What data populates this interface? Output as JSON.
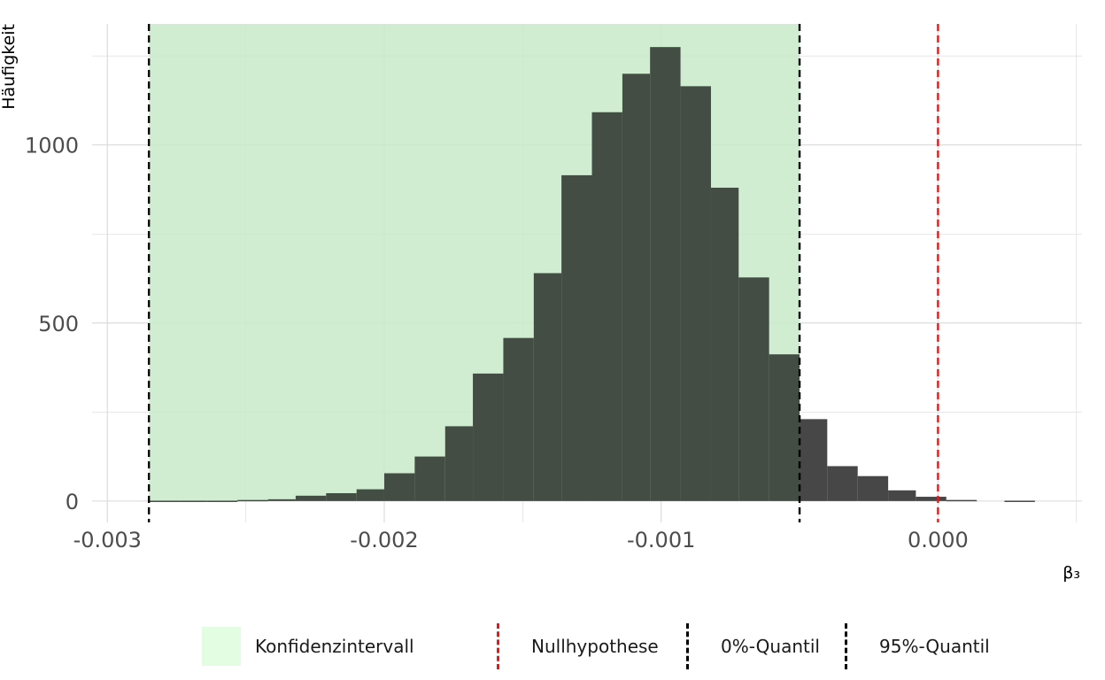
{
  "chart_data": {
    "type": "bar",
    "title": "",
    "xlabel": "β₃",
    "ylabel": "Häufigkeit",
    "xlim": [
      -0.0031,
      0.00052
    ],
    "ylim": [
      -60,
      1340
    ],
    "x_ticks": [
      -0.003,
      -0.002,
      -0.001,
      0.0
    ],
    "x_tick_labels": [
      "-0.003",
      "-0.002",
      "-0.001",
      "0.000"
    ],
    "y_ticks": [
      0,
      500,
      1000
    ],
    "y_tick_labels": [
      "0",
      "500",
      "1000"
    ],
    "grid": true,
    "bin_width": 0.000107,
    "bins": [
      {
        "x0": -0.00285,
        "x1": -0.00274,
        "count": 1
      },
      {
        "x0": -0.00274,
        "x1": -0.00264,
        "count": 1
      },
      {
        "x0": -0.00264,
        "x1": -0.00253,
        "count": 1
      },
      {
        "x0": -0.00253,
        "x1": -0.00242,
        "count": 3
      },
      {
        "x0": -0.00242,
        "x1": -0.00232,
        "count": 5
      },
      {
        "x0": -0.00232,
        "x1": -0.00221,
        "count": 15
      },
      {
        "x0": -0.00221,
        "x1": -0.0021,
        "count": 22
      },
      {
        "x0": -0.0021,
        "x1": -0.002,
        "count": 33
      },
      {
        "x0": -0.002,
        "x1": -0.00189,
        "count": 78
      },
      {
        "x0": -0.00189,
        "x1": -0.00178,
        "count": 125
      },
      {
        "x0": -0.00178,
        "x1": -0.00168,
        "count": 210
      },
      {
        "x0": -0.00168,
        "x1": -0.00157,
        "count": 358
      },
      {
        "x0": -0.00157,
        "x1": -0.00146,
        "count": 458
      },
      {
        "x0": -0.00146,
        "x1": -0.00136,
        "count": 640
      },
      {
        "x0": -0.00136,
        "x1": -0.00125,
        "count": 915
      },
      {
        "x0": -0.00125,
        "x1": -0.00114,
        "count": 1092
      },
      {
        "x0": -0.00114,
        "x1": -0.00104,
        "count": 1200
      },
      {
        "x0": -0.00104,
        "x1": -0.00093,
        "count": 1275
      },
      {
        "x0": -0.00093,
        "x1": -0.00082,
        "count": 1165
      },
      {
        "x0": -0.00082,
        "x1": -0.00072,
        "count": 880
      },
      {
        "x0": -0.00072,
        "x1": -0.00061,
        "count": 628
      },
      {
        "x0": -0.00061,
        "x1": -0.0005,
        "count": 412
      },
      {
        "x0": -0.0005,
        "x1": -0.0004,
        "count": 230
      },
      {
        "x0": -0.0004,
        "x1": -0.00029,
        "count": 98
      },
      {
        "x0": -0.00029,
        "x1": -0.00018,
        "count": 70
      },
      {
        "x0": -0.00018,
        "x1": -8e-05,
        "count": 30
      },
      {
        "x0": -8e-05,
        "x1": 3e-05,
        "count": 12
      },
      {
        "x0": 3e-05,
        "x1": 0.00014,
        "count": 3
      },
      {
        "x0": 0.00014,
        "x1": 0.00024,
        "count": 0
      },
      {
        "x0": 0.00024,
        "x1": 0.00035,
        "count": 1
      }
    ],
    "confidence_interval": [
      -0.00285,
      -0.0005
    ],
    "vlines": [
      {
        "name": "Nullhypothese",
        "x": 0.0,
        "color": "#e31a1c"
      },
      {
        "name": "0%-Quantil",
        "x": -0.00285,
        "color": "#000000"
      },
      {
        "name": "95%-Quantil",
        "x": -0.0005,
        "color": "#000000"
      }
    ],
    "colors": {
      "bar": "#474747",
      "ci_fill": "#e3fde3",
      "grid": "#d9d9d9",
      "null_line": "#e31a1c",
      "quantile_line": "#000000"
    },
    "legend": {
      "position": "bottom",
      "items": [
        {
          "label": "Konfidenzintervall",
          "kind": "fill",
          "color": "#e3fde3"
        },
        {
          "label": "Nullhypothese",
          "kind": "dashed-line",
          "color": "#e31a1c"
        },
        {
          "label": "0%-Quantil",
          "kind": "dashed-line",
          "color": "#000000"
        },
        {
          "label": "95%-Quantil",
          "kind": "dashed-line",
          "color": "#000000"
        }
      ]
    }
  }
}
